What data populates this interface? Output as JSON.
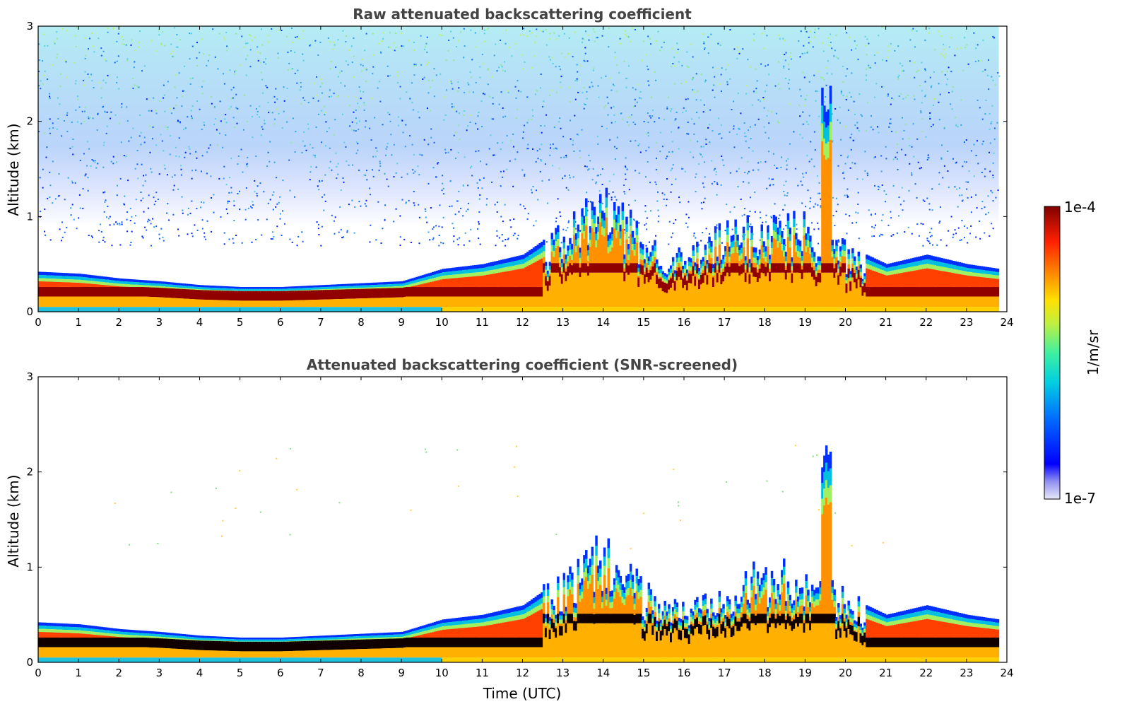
{
  "chart_data": [
    {
      "type": "heatmap",
      "title": "Raw attenuated backscattering coefficient",
      "xlabel": "",
      "ylabel": "Altitude (km)",
      "xlim": [
        0,
        24
      ],
      "ylim": [
        0,
        3
      ],
      "xticks": [
        "0",
        "1",
        "2",
        "3",
        "4",
        "5",
        "6",
        "7",
        "8",
        "9",
        "10",
        "11",
        "12",
        "13",
        "14",
        "15",
        "16",
        "17",
        "18",
        "19",
        "20",
        "21",
        "22",
        "23",
        "24"
      ],
      "yticks": [
        "0",
        "1",
        "2",
        "3"
      ],
      "x_time_utc_h": [
        0,
        1,
        2,
        3,
        4,
        5,
        6,
        7,
        8,
        9,
        10,
        11,
        12,
        13,
        14,
        15,
        16,
        17,
        18,
        19,
        20,
        21,
        22,
        23,
        23.8
      ],
      "boundary_layer_top_km": [
        0.42,
        0.4,
        0.35,
        0.32,
        0.28,
        0.26,
        0.26,
        0.28,
        0.3,
        0.32,
        0.45,
        0.5,
        0.6,
        0.9,
        1.3,
        0.8,
        0.6,
        0.9,
        1.0,
        1.0,
        0.7,
        0.5,
        0.6,
        0.5,
        0.45
      ],
      "max_signal_height_km": [
        0.22,
        0.2,
        0.18,
        0.18,
        0.15,
        0.12,
        0.12,
        0.15,
        0.17,
        0.18,
        0.25,
        0.3,
        0.35,
        0.5,
        0.6,
        0.4,
        0.3,
        0.5,
        0.6,
        0.55,
        0.4,
        0.2,
        0.2,
        0.2,
        0.2
      ],
      "noise_region": "0.8–3 km, strongest 13–20 UTC",
      "peak_plume": {
        "time_utc": 19.5,
        "top_km": 2.4
      }
    },
    {
      "type": "heatmap",
      "title": "Attenuated backscattering coefficient (SNR-screened)",
      "xlabel": "Time (UTC)",
      "ylabel": "Altitude (km)",
      "xlim": [
        0,
        24
      ],
      "ylim": [
        0,
        3
      ],
      "xticks": [
        "0",
        "1",
        "2",
        "3",
        "4",
        "5",
        "6",
        "7",
        "8",
        "9",
        "10",
        "11",
        "12",
        "13",
        "14",
        "15",
        "16",
        "17",
        "18",
        "19",
        "20",
        "21",
        "22",
        "23",
        "24"
      ],
      "yticks": [
        "0",
        "1",
        "2",
        "3"
      ],
      "x_time_utc_h": [
        0,
        1,
        2,
        3,
        4,
        5,
        6,
        7,
        8,
        9,
        10,
        11,
        12,
        13,
        14,
        15,
        16,
        17,
        18,
        19,
        20,
        21,
        22,
        23,
        23.8
      ],
      "boundary_layer_top_km": [
        0.42,
        0.4,
        0.35,
        0.32,
        0.28,
        0.26,
        0.26,
        0.28,
        0.3,
        0.32,
        0.45,
        0.5,
        0.6,
        0.9,
        1.3,
        0.8,
        0.6,
        0.9,
        1.0,
        1.0,
        0.7,
        0.5,
        0.6,
        0.5,
        0.45
      ],
      "peak_plume": {
        "time_utc": 19.5,
        "top_km": 2.4
      }
    }
  ],
  "colorbar": {
    "label": "1/m/sr",
    "max_label": "1e-4",
    "min_label": "1e-7",
    "scale": "log",
    "colormap": [
      "#e8e8f8",
      "#0000ff",
      "#00a0ff",
      "#00e0c0",
      "#80f060",
      "#ffe000",
      "#ff8000",
      "#ff2000",
      "#c00000",
      "#800000"
    ]
  }
}
